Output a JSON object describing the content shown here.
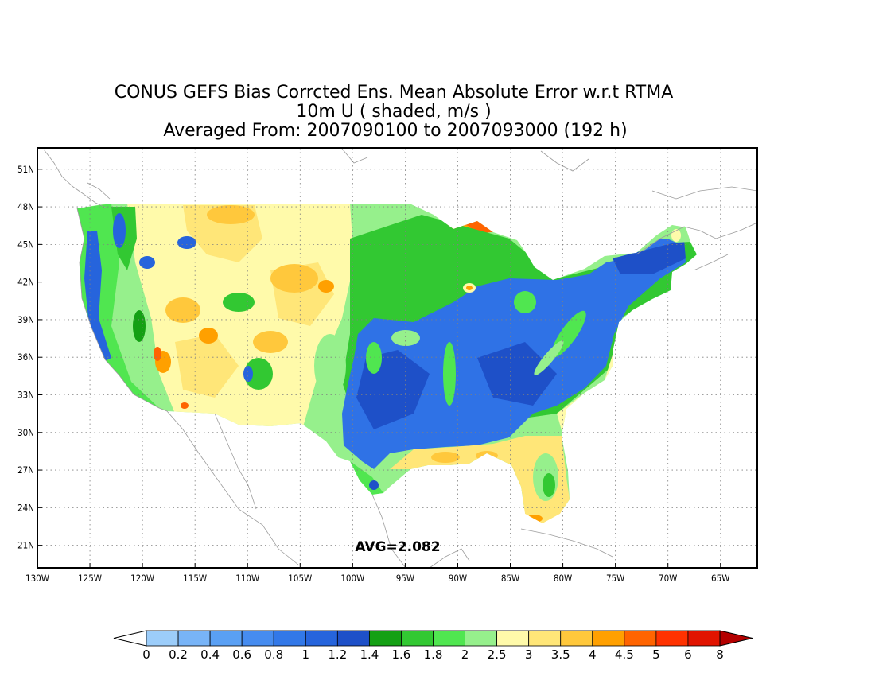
{
  "title": {
    "line1": "CONUS GEFS Bias Corrcted Ens. Mean Absolute Error w.r.t RTMA",
    "line2": "10m U ( shaded, m/s )",
    "line3": "Averaged From: 2007090100 to 2007093000 (192 h)"
  },
  "annotation": {
    "avg_text": "AVG=2.082"
  },
  "axes": {
    "lon_ticks": [
      "130W",
      "125W",
      "120W",
      "115W",
      "110W",
      "105W",
      "100W",
      "95W",
      "90W",
      "85W",
      "80W",
      "75W",
      "70W",
      "65W"
    ],
    "lat_ticks": [
      "51N",
      "48N",
      "45N",
      "42N",
      "39N",
      "36N",
      "33N",
      "30N",
      "27N",
      "24N",
      "21N"
    ],
    "lon_range": [
      -130,
      -61.5
    ],
    "lat_range": [
      19.2,
      52.7
    ],
    "grid": true
  },
  "colorbar": {
    "labels": [
      "0",
      "0.2",
      "0.4",
      "0.6",
      "0.8",
      "1",
      "1.2",
      "1.4",
      "1.6",
      "1.8",
      "2",
      "2.5",
      "3",
      "3.5",
      "4",
      "4.5",
      "5",
      "6",
      "8"
    ],
    "colors": [
      "#9ccdfa",
      "#78b4f7",
      "#5aa0f4",
      "#468cf0",
      "#3278e8",
      "#2664dc",
      "#1e50c8",
      "#14a014",
      "#32c832",
      "#50e650",
      "#96f08c",
      "#fffaaa",
      "#ffe678",
      "#ffc83c",
      "#ffa000",
      "#ff6400",
      "#ff3200",
      "#e11400",
      "#b40000"
    ]
  },
  "colors": {
    "below_range": "#ffffff",
    "above_range": "#b40000",
    "coast": "#9c9c9c",
    "grid": "#808080"
  }
}
